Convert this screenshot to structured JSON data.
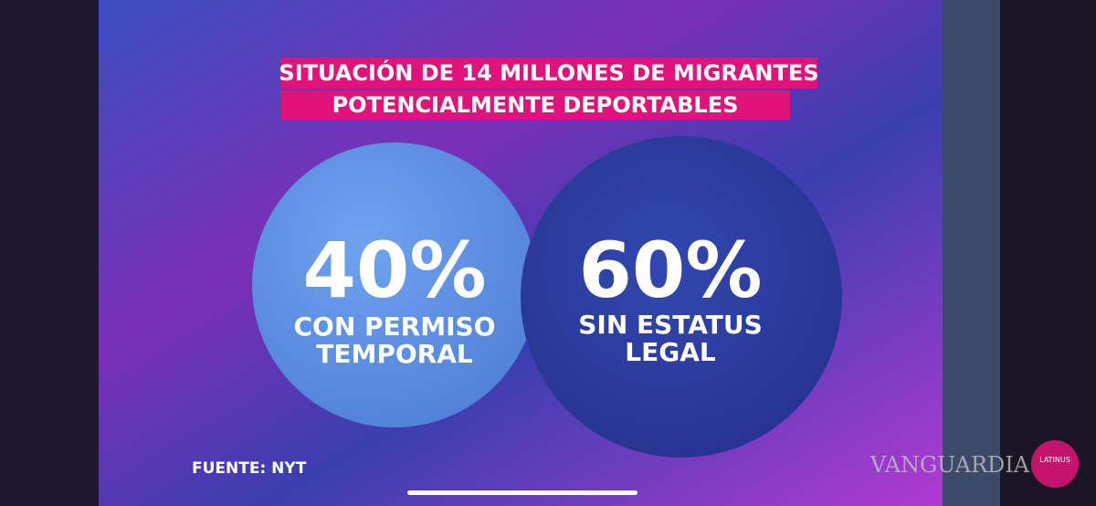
{
  "header": {
    "title_lines": [
      "SITUACIÓN DE 14 MILLONES DE MIGRANTES",
      "POTENCIALMENTE DEPORTABLES"
    ]
  },
  "circles": [
    {
      "value": "40%",
      "caption_lines": [
        "CON PERMISO",
        "TEMPORAL"
      ]
    },
    {
      "value": "60%",
      "caption_lines": [
        "SIN ESTATUS",
        "LEGAL"
      ]
    }
  ],
  "source": "FUENTE: NYT",
  "watermark": "VANGUARDIA",
  "logo": "LATINUS"
}
